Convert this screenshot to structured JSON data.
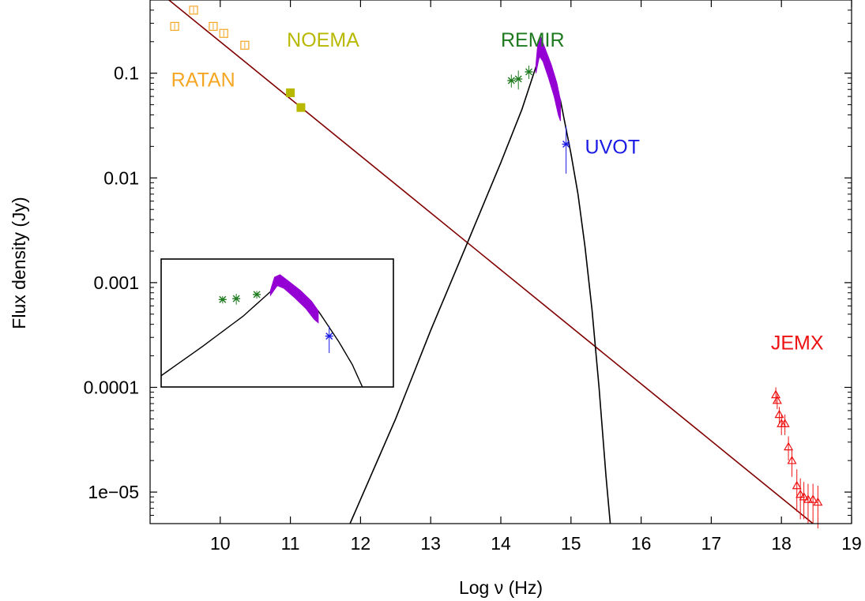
{
  "chart_data": {
    "type": "scatter",
    "title": "",
    "xlabel": "Log ν (Hz)",
    "ylabel": "Flux density (Jy)",
    "xlim": [
      9,
      19
    ],
    "ylim": [
      5e-06,
      0.5
    ],
    "yscale": "log",
    "grid": false,
    "legend": "none",
    "x_ticks": [
      10,
      11,
      12,
      13,
      14,
      15,
      16,
      17,
      18,
      19
    ],
    "x_tick_labels": [
      "10",
      "11",
      "12",
      "13",
      "14",
      "15",
      "16",
      "17",
      "18",
      "19"
    ],
    "y_ticks": [
      1e-05,
      0.0001,
      0.001,
      0.01,
      0.1
    ],
    "y_tick_labels": [
      "1e−05",
      "0.0001",
      "0.001",
      "0.01",
      "0.1"
    ],
    "series": [
      {
        "name": "RATAN",
        "color": "#F5A623",
        "marker": "open-square-dot",
        "points": [
          [
            9.35,
            0.28
          ],
          [
            9.62,
            0.4
          ],
          [
            9.9,
            0.28
          ],
          [
            10.05,
            0.24
          ],
          [
            10.35,
            0.185
          ]
        ]
      },
      {
        "name": "NOEMA",
        "color": "#B8B800",
        "marker": "filled-square",
        "points": [
          [
            11.0,
            0.065
          ],
          [
            11.15,
            0.047
          ]
        ]
      },
      {
        "name": "REMIR",
        "color": "#1E7A1E",
        "marker": "asterisk",
        "points": [
          [
            14.15,
            0.085,
            0.012
          ],
          [
            14.25,
            0.088,
            0.018
          ],
          [
            14.4,
            0.103,
            0.015
          ]
        ]
      },
      {
        "name": "UVOT",
        "color": "#1A1AE6",
        "marker": "asterisk",
        "points": [
          [
            14.93,
            0.021,
            0.01
          ]
        ]
      },
      {
        "name": "JEMX",
        "color": "#EE1111",
        "marker": "open-triangle",
        "points": [
          [
            17.92,
            8.5e-05,
            1.5e-05
          ],
          [
            17.94,
            7.5e-05,
            1.3e-05
          ],
          [
            17.97,
            5.5e-05,
            1e-05
          ],
          [
            18.0,
            4.5e-05,
            1e-05
          ],
          [
            18.05,
            4.5e-05,
            1e-05
          ],
          [
            18.1,
            2.7e-05,
            7e-06
          ],
          [
            18.15,
            2e-05,
            6e-06
          ],
          [
            18.22,
            1.15e-05,
            5e-06
          ],
          [
            18.27,
            9.5e-06,
            4e-06
          ],
          [
            18.32,
            9e-06,
            3.5e-06
          ],
          [
            18.38,
            8.5e-06,
            3.5e-06
          ],
          [
            18.45,
            8.5e-06,
            3.5e-06
          ],
          [
            18.52,
            8e-06,
            3.5e-06
          ]
        ]
      }
    ],
    "curves": [
      {
        "id": "powerlaw",
        "color": "#800000",
        "points": [
          [
            9.0,
            0.7
          ],
          [
            18.45,
            5e-06
          ]
        ]
      },
      {
        "id": "synchrotron-model",
        "color": "#000000",
        "points": [
          [
            11.85,
            5e-06
          ],
          [
            12.5,
            5e-05
          ],
          [
            13.0,
            0.00035
          ],
          [
            13.5,
            0.0022
          ],
          [
            14.0,
            0.014
          ],
          [
            14.3,
            0.045
          ],
          [
            14.55,
            0.145
          ],
          [
            14.6,
            0.15
          ],
          [
            14.7,
            0.11
          ],
          [
            14.85,
            0.055
          ],
          [
            15.0,
            0.017
          ],
          [
            15.1,
            0.007
          ],
          [
            15.2,
            0.0022
          ],
          [
            15.3,
            0.00055
          ],
          [
            15.4,
            0.0001
          ],
          [
            15.5,
            1.4e-05
          ],
          [
            15.56,
            5e-06
          ]
        ]
      }
    ],
    "bands": [
      {
        "id": "purple-bowtie",
        "color": "#9400D3",
        "upper": [
          [
            14.5,
            0.12
          ],
          [
            14.53,
            0.2
          ],
          [
            14.57,
            0.22
          ],
          [
            14.62,
            0.18
          ],
          [
            14.72,
            0.12
          ],
          [
            14.8,
            0.08
          ],
          [
            14.85,
            0.055
          ]
        ],
        "lower": [
          [
            14.5,
            0.1
          ],
          [
            14.55,
            0.145
          ],
          [
            14.6,
            0.13
          ],
          [
            14.68,
            0.09
          ],
          [
            14.76,
            0.06
          ],
          [
            14.82,
            0.04
          ],
          [
            14.85,
            0.035
          ]
        ]
      }
    ],
    "annotations": [
      {
        "text": "RATAN",
        "color": "#F5A623",
        "x": 9.3,
        "y": 0.075
      },
      {
        "text": "NOEMA",
        "color": "#B8B800",
        "x": 10.95,
        "y": 0.18
      },
      {
        "text": "REMIR",
        "color": "#1E7A1E",
        "x": 14.0,
        "y": 0.18
      },
      {
        "text": "UVOT",
        "color": "#1A1AE6",
        "x": 15.2,
        "y": 0.017
      },
      {
        "text": "JEMX",
        "color": "#EE1111",
        "x": 17.85,
        "y": 0.00023
      }
    ],
    "inset": {
      "xlim": [
        13.7,
        15.4
      ],
      "ylim": [
        0.003,
        0.4
      ],
      "yscale": "log",
      "content": "zoom of REMIR, UVOT and purple bowtie region with model curve"
    }
  }
}
